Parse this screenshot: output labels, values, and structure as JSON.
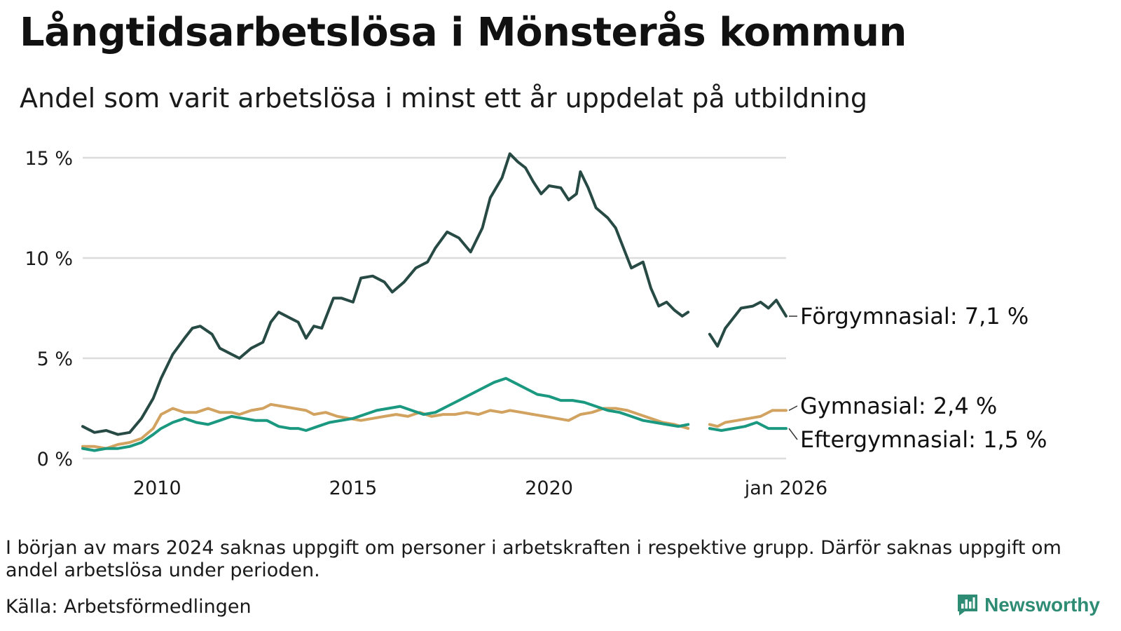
{
  "title": "Långtidsarbetslösa i Mönsterås kommun",
  "subtitle": "Andel som varit arbetslösa i minst ett år uppdelat på utbildning",
  "note": "I början av mars 2024 saknas uppgift om personer i arbetskraften i respektive grupp. Därför saknas uppgift om andel arbetslösa under perioden.",
  "source": "Källa: Arbetsförmedlingen",
  "brand": {
    "name": "Newsworthy",
    "color": "#2e8b74",
    "icon": "bar-chart-logo-icon"
  },
  "chart_data": {
    "type": "line",
    "x_unit": "year",
    "xlim": [
      2008.1,
      2026.05
    ],
    "ylim": [
      0,
      15
    ],
    "y_ticks": [
      {
        "value": 0,
        "label": "0 %"
      },
      {
        "value": 5,
        "label": "5 %"
      },
      {
        "value": 10,
        "label": "10 %"
      },
      {
        "value": 15,
        "label": "15 %"
      }
    ],
    "x_ticks": [
      {
        "value": 2010,
        "label": "2010"
      },
      {
        "value": 2015,
        "label": "2015"
      },
      {
        "value": 2020,
        "label": "2020"
      },
      {
        "value": 2026.05,
        "label": "jan 2026"
      }
    ],
    "grid": true,
    "gap": [
      2023.55,
      2024.1
    ],
    "series": [
      {
        "name": "Förgymnasial",
        "label": "Förgymnasial: 7,1 %",
        "color": "#274a44",
        "points": [
          [
            2008.1,
            1.6
          ],
          [
            2008.4,
            1.3
          ],
          [
            2008.7,
            1.4
          ],
          [
            2009.0,
            1.2
          ],
          [
            2009.3,
            1.3
          ],
          [
            2009.6,
            2.0
          ],
          [
            2009.9,
            3.0
          ],
          [
            2010.1,
            4.0
          ],
          [
            2010.4,
            5.2
          ],
          [
            2010.7,
            6.0
          ],
          [
            2010.9,
            6.5
          ],
          [
            2011.1,
            6.6
          ],
          [
            2011.4,
            6.2
          ],
          [
            2011.6,
            5.5
          ],
          [
            2011.9,
            5.2
          ],
          [
            2012.1,
            5.0
          ],
          [
            2012.4,
            5.5
          ],
          [
            2012.7,
            5.8
          ],
          [
            2012.9,
            6.8
          ],
          [
            2013.1,
            7.3
          ],
          [
            2013.4,
            7.0
          ],
          [
            2013.6,
            6.8
          ],
          [
            2013.8,
            6.0
          ],
          [
            2014.0,
            6.6
          ],
          [
            2014.2,
            6.5
          ],
          [
            2014.5,
            8.0
          ],
          [
            2014.7,
            8.0
          ],
          [
            2015.0,
            7.8
          ],
          [
            2015.2,
            9.0
          ],
          [
            2015.5,
            9.1
          ],
          [
            2015.8,
            8.8
          ],
          [
            2016.0,
            8.3
          ],
          [
            2016.3,
            8.8
          ],
          [
            2016.6,
            9.5
          ],
          [
            2016.9,
            9.8
          ],
          [
            2017.1,
            10.5
          ],
          [
            2017.4,
            11.3
          ],
          [
            2017.7,
            11.0
          ],
          [
            2018.0,
            10.3
          ],
          [
            2018.3,
            11.5
          ],
          [
            2018.5,
            13.0
          ],
          [
            2018.8,
            14.0
          ],
          [
            2019.0,
            15.2
          ],
          [
            2019.2,
            14.8
          ],
          [
            2019.4,
            14.5
          ],
          [
            2019.6,
            13.8
          ],
          [
            2019.8,
            13.2
          ],
          [
            2020.0,
            13.6
          ],
          [
            2020.3,
            13.5
          ],
          [
            2020.5,
            12.9
          ],
          [
            2020.7,
            13.2
          ],
          [
            2020.8,
            14.3
          ],
          [
            2021.0,
            13.5
          ],
          [
            2021.2,
            12.5
          ],
          [
            2021.5,
            12.0
          ],
          [
            2021.7,
            11.5
          ],
          [
            2021.9,
            10.5
          ],
          [
            2022.1,
            9.5
          ],
          [
            2022.4,
            9.8
          ],
          [
            2022.6,
            8.5
          ],
          [
            2022.8,
            7.6
          ],
          [
            2023.0,
            7.8
          ],
          [
            2023.2,
            7.4
          ],
          [
            2023.4,
            7.1
          ],
          [
            2023.55,
            7.3
          ],
          [
            2024.1,
            6.2
          ],
          [
            2024.3,
            5.6
          ],
          [
            2024.5,
            6.5
          ],
          [
            2024.7,
            7.0
          ],
          [
            2024.9,
            7.5
          ],
          [
            2025.2,
            7.6
          ],
          [
            2025.4,
            7.8
          ],
          [
            2025.6,
            7.5
          ],
          [
            2025.8,
            7.9
          ],
          [
            2026.05,
            7.1
          ]
        ]
      },
      {
        "name": "Gymnasial",
        "label": "Gymnasial: 2,4 %",
        "color": "#d2a360",
        "points": [
          [
            2008.1,
            0.6
          ],
          [
            2008.4,
            0.6
          ],
          [
            2008.7,
            0.5
          ],
          [
            2009.0,
            0.7
          ],
          [
            2009.3,
            0.8
          ],
          [
            2009.6,
            1.0
          ],
          [
            2009.9,
            1.5
          ],
          [
            2010.1,
            2.2
          ],
          [
            2010.4,
            2.5
          ],
          [
            2010.7,
            2.3
          ],
          [
            2011.0,
            2.3
          ],
          [
            2011.3,
            2.5
          ],
          [
            2011.6,
            2.3
          ],
          [
            2011.9,
            2.3
          ],
          [
            2012.1,
            2.2
          ],
          [
            2012.4,
            2.4
          ],
          [
            2012.7,
            2.5
          ],
          [
            2012.9,
            2.7
          ],
          [
            2013.2,
            2.6
          ],
          [
            2013.5,
            2.5
          ],
          [
            2013.8,
            2.4
          ],
          [
            2014.0,
            2.2
          ],
          [
            2014.3,
            2.3
          ],
          [
            2014.6,
            2.1
          ],
          [
            2014.9,
            2.0
          ],
          [
            2015.2,
            1.9
          ],
          [
            2015.5,
            2.0
          ],
          [
            2015.8,
            2.1
          ],
          [
            2016.1,
            2.2
          ],
          [
            2016.4,
            2.1
          ],
          [
            2016.7,
            2.3
          ],
          [
            2017.0,
            2.1
          ],
          [
            2017.3,
            2.2
          ],
          [
            2017.6,
            2.2
          ],
          [
            2017.9,
            2.3
          ],
          [
            2018.2,
            2.2
          ],
          [
            2018.5,
            2.4
          ],
          [
            2018.8,
            2.3
          ],
          [
            2019.0,
            2.4
          ],
          [
            2019.3,
            2.3
          ],
          [
            2019.6,
            2.2
          ],
          [
            2019.9,
            2.1
          ],
          [
            2020.2,
            2.0
          ],
          [
            2020.5,
            1.9
          ],
          [
            2020.8,
            2.2
          ],
          [
            2021.1,
            2.3
          ],
          [
            2021.4,
            2.5
          ],
          [
            2021.7,
            2.5
          ],
          [
            2022.0,
            2.4
          ],
          [
            2022.3,
            2.2
          ],
          [
            2022.6,
            2.0
          ],
          [
            2022.9,
            1.8
          ],
          [
            2023.2,
            1.7
          ],
          [
            2023.55,
            1.5
          ],
          [
            2024.1,
            1.7
          ],
          [
            2024.3,
            1.6
          ],
          [
            2024.5,
            1.8
          ],
          [
            2024.8,
            1.9
          ],
          [
            2025.1,
            2.0
          ],
          [
            2025.4,
            2.1
          ],
          [
            2025.7,
            2.4
          ],
          [
            2026.05,
            2.4
          ]
        ]
      },
      {
        "name": "Eftergymnasial",
        "label": "Eftergymnasial: 1,5 %",
        "color": "#1a9880",
        "points": [
          [
            2008.1,
            0.5
          ],
          [
            2008.4,
            0.4
          ],
          [
            2008.7,
            0.5
          ],
          [
            2009.0,
            0.5
          ],
          [
            2009.3,
            0.6
          ],
          [
            2009.6,
            0.8
          ],
          [
            2009.9,
            1.2
          ],
          [
            2010.1,
            1.5
          ],
          [
            2010.4,
            1.8
          ],
          [
            2010.7,
            2.0
          ],
          [
            2011.0,
            1.8
          ],
          [
            2011.3,
            1.7
          ],
          [
            2011.6,
            1.9
          ],
          [
            2011.9,
            2.1
          ],
          [
            2012.2,
            2.0
          ],
          [
            2012.5,
            1.9
          ],
          [
            2012.8,
            1.9
          ],
          [
            2013.1,
            1.6
          ],
          [
            2013.4,
            1.5
          ],
          [
            2013.6,
            1.5
          ],
          [
            2013.8,
            1.4
          ],
          [
            2014.1,
            1.6
          ],
          [
            2014.4,
            1.8
          ],
          [
            2014.7,
            1.9
          ],
          [
            2015.0,
            2.0
          ],
          [
            2015.3,
            2.2
          ],
          [
            2015.6,
            2.4
          ],
          [
            2015.9,
            2.5
          ],
          [
            2016.2,
            2.6
          ],
          [
            2016.5,
            2.4
          ],
          [
            2016.8,
            2.2
          ],
          [
            2017.1,
            2.3
          ],
          [
            2017.4,
            2.6
          ],
          [
            2017.7,
            2.9
          ],
          [
            2018.0,
            3.2
          ],
          [
            2018.3,
            3.5
          ],
          [
            2018.6,
            3.8
          ],
          [
            2018.9,
            4.0
          ],
          [
            2019.1,
            3.8
          ],
          [
            2019.4,
            3.5
          ],
          [
            2019.7,
            3.2
          ],
          [
            2020.0,
            3.1
          ],
          [
            2020.3,
            2.9
          ],
          [
            2020.6,
            2.9
          ],
          [
            2020.9,
            2.8
          ],
          [
            2021.2,
            2.6
          ],
          [
            2021.5,
            2.4
          ],
          [
            2021.8,
            2.3
          ],
          [
            2022.1,
            2.1
          ],
          [
            2022.4,
            1.9
          ],
          [
            2022.7,
            1.8
          ],
          [
            2023.0,
            1.7
          ],
          [
            2023.3,
            1.6
          ],
          [
            2023.55,
            1.7
          ],
          [
            2024.1,
            1.5
          ],
          [
            2024.4,
            1.4
          ],
          [
            2024.7,
            1.5
          ],
          [
            2025.0,
            1.6
          ],
          [
            2025.3,
            1.8
          ],
          [
            2025.6,
            1.5
          ],
          [
            2026.05,
            1.5
          ]
        ]
      }
    ]
  }
}
